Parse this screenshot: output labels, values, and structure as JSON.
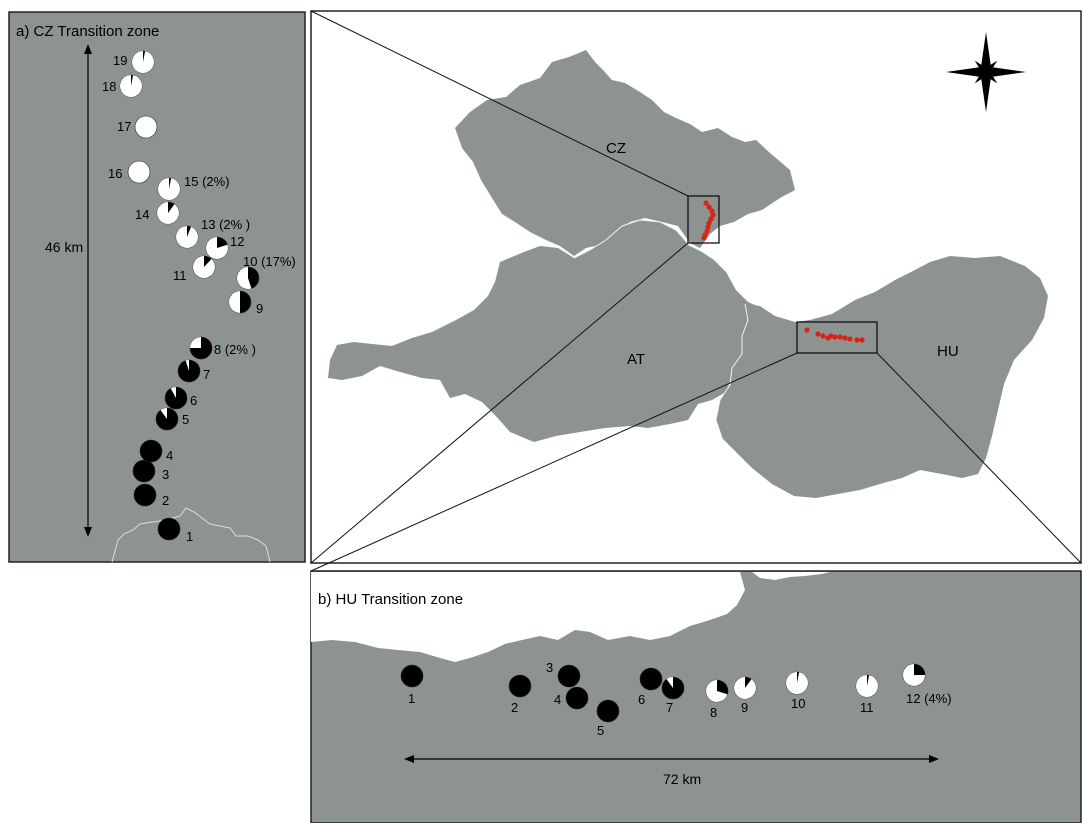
{
  "panel_a": {
    "title": "a) CZ Transition zone",
    "scale_label": "46 km",
    "sites": [
      {
        "label": "1",
        "proportion_white": 0.0
      },
      {
        "label": "2",
        "proportion_white": 0.0
      },
      {
        "label": "3",
        "proportion_white": 0.0
      },
      {
        "label": "4",
        "proportion_white": 0.0
      },
      {
        "label": "5",
        "proportion_white": 0.1
      },
      {
        "label": "6",
        "proportion_white": 0.08
      },
      {
        "label": "7",
        "proportion_white": 0.05
      },
      {
        "label": "8 (2% )",
        "proportion_white": 0.25
      },
      {
        "label": "9",
        "proportion_white": 0.5
      },
      {
        "label": "10 (17%)",
        "proportion_white": 0.55
      },
      {
        "label": "11",
        "proportion_white": 0.88
      },
      {
        "label": "12",
        "proportion_white": 0.8
      },
      {
        "label": "13 (2% )",
        "proportion_white": 0.94
      },
      {
        "label": "14",
        "proportion_white": 0.9
      },
      {
        "label": "15 (2%)",
        "proportion_white": 0.97
      },
      {
        "label": "16",
        "proportion_white": 1.0
      },
      {
        "label": "17",
        "proportion_white": 1.0
      },
      {
        "label": "18",
        "proportion_white": 0.97
      },
      {
        "label": "19",
        "proportion_white": 0.97
      }
    ]
  },
  "panel_b": {
    "title": "b) HU Transition zone",
    "scale_label": "72 km",
    "sites": [
      {
        "label": "1",
        "proportion_white": 0.0
      },
      {
        "label": "2",
        "proportion_white": 0.0
      },
      {
        "label": "3",
        "proportion_white": 0.0
      },
      {
        "label": "4",
        "proportion_white": 0.0
      },
      {
        "label": "5",
        "proportion_white": 0.0
      },
      {
        "label": "6",
        "proportion_white": 0.0
      },
      {
        "label": "7",
        "proportion_white": 0.1
      },
      {
        "label": "8",
        "proportion_white": 0.7
      },
      {
        "label": "9",
        "proportion_white": 0.9
      },
      {
        "label": "10",
        "proportion_white": 0.97
      },
      {
        "label": "11",
        "proportion_white": 0.97
      },
      {
        "label": "12 (4%)",
        "proportion_white": 0.75
      }
    ]
  },
  "main_map": {
    "countries": [
      "CZ",
      "AT",
      "HU"
    ],
    "north_arrow_icon": "compass-star-icon"
  },
  "colors": {
    "land": "#8c9391",
    "sample_point": "#d62418",
    "frame": "#222222",
    "pie_dark": "#000000",
    "pie_light": "#ffffff"
  }
}
